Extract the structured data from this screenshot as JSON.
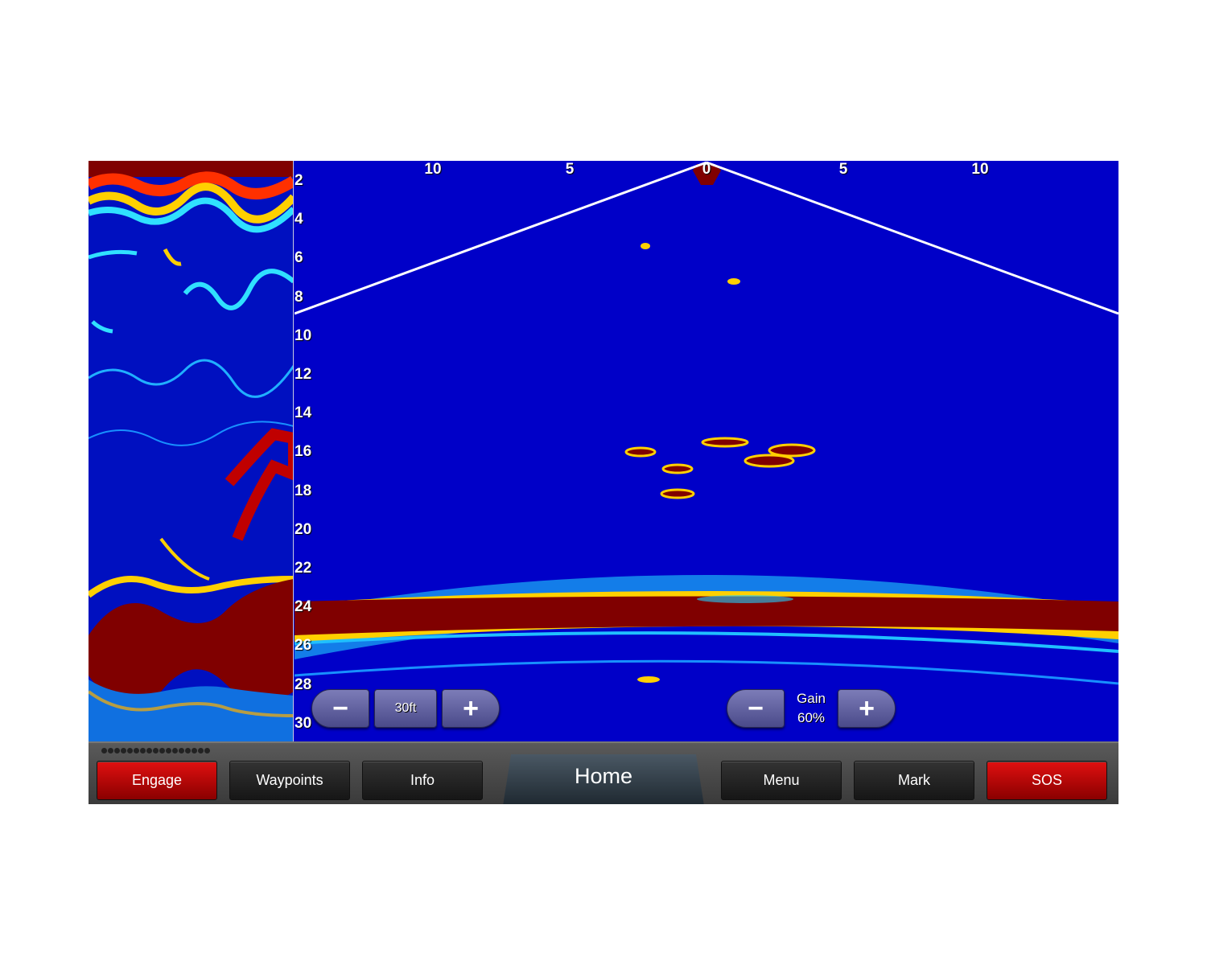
{
  "sonar": {
    "range_labels": [
      "10",
      "5",
      "0",
      "5",
      "10"
    ],
    "depth_labels": [
      "2",
      "4",
      "6",
      "8",
      "10",
      "12",
      "14",
      "16",
      "18",
      "20",
      "22",
      "24",
      "26",
      "28",
      "30"
    ],
    "depth_range": {
      "label": "30ft",
      "decrease_icon": "minus-icon",
      "increase_icon": "plus-icon"
    },
    "gain": {
      "label": "Gain",
      "value": "60%",
      "value_percent": 60,
      "decrease_icon": "minus-icon",
      "increase_icon": "plus-icon"
    },
    "colors": {
      "water": "#0000c8",
      "strong_return": "#800000",
      "medium_return": "#ffff00",
      "weak_return": "#00c0ff",
      "beam_edge": "#ffffff"
    }
  },
  "bottom_bar": {
    "buttons": [
      {
        "label": "Engage",
        "color": "#c00000"
      },
      {
        "label": "Waypoints"
      },
      {
        "label": "Info"
      },
      {
        "label": "Home"
      },
      {
        "label": "Menu"
      },
      {
        "label": "Mark"
      },
      {
        "label": "SOS",
        "color": "#c00000"
      }
    ]
  }
}
